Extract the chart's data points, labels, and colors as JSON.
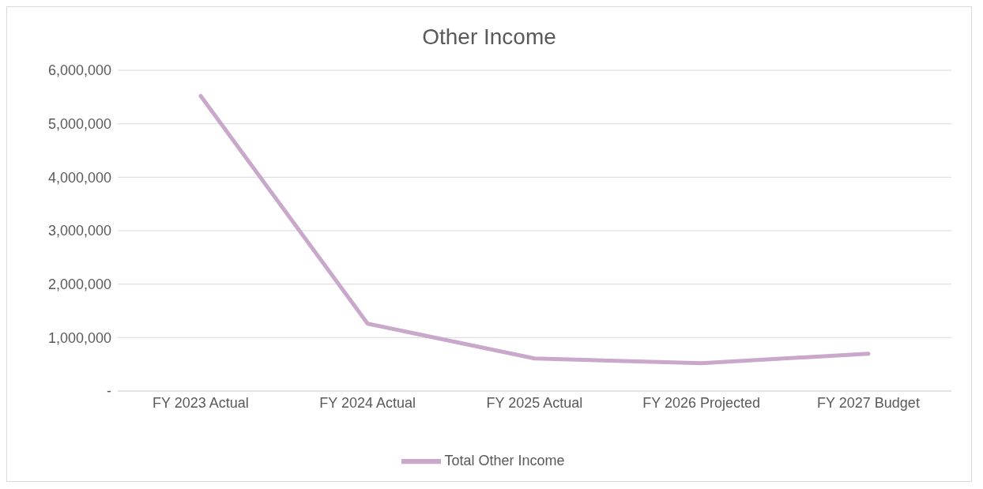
{
  "chart_data": {
    "type": "line",
    "title": "Other Income",
    "categories": [
      "FY 2023 Actual",
      "FY 2024 Actual",
      "FY 2025 Actual",
      "FY 2026 Projected",
      "FY 2027 Budget"
    ],
    "series": [
      {
        "name": "Total Other Income",
        "color": "#c9a8cc",
        "values": [
          5520000,
          1260000,
          610000,
          520000,
          700000
        ]
      }
    ],
    "ylim": [
      0,
      6000000
    ],
    "yticks": [
      {
        "value": 0,
        "label": "-"
      },
      {
        "value": 1000000,
        "label": "1,000,000"
      },
      {
        "value": 2000000,
        "label": "2,000,000"
      },
      {
        "value": 3000000,
        "label": "3,000,000"
      },
      {
        "value": 4000000,
        "label": "4,000,000"
      },
      {
        "value": 5000000,
        "label": "5,000,000"
      },
      {
        "value": 6000000,
        "label": "6,000,000"
      }
    ],
    "grid": "y",
    "legend": "bottom",
    "marker": "none",
    "line_style": "solid"
  }
}
